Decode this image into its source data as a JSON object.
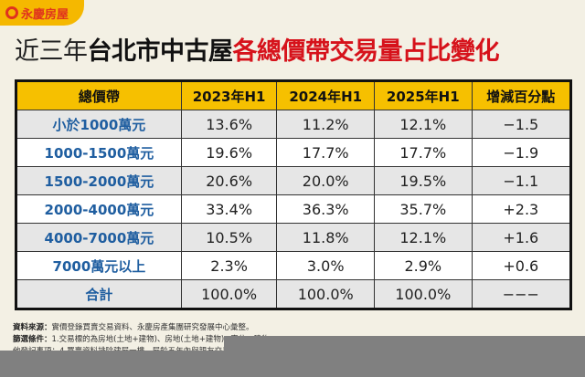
{
  "logo": {
    "text": "永慶房屋"
  },
  "title": {
    "part1": "近三年",
    "part2": "台北市中古屋",
    "part3": "各總價帶交易量占比變化"
  },
  "table": {
    "headers": [
      "總價帶",
      "2023年H1",
      "2024年H1",
      "2025年H1",
      "增減百分點"
    ],
    "rows": [
      [
        "小於1000萬元",
        "13.6%",
        "11.2%",
        "12.1%",
        "−1.5"
      ],
      [
        "1000-1500萬元",
        "19.6%",
        "17.7%",
        "17.7%",
        "−1.9"
      ],
      [
        "1500-2000萬元",
        "20.6%",
        "20.0%",
        "19.5%",
        "−1.1"
      ],
      [
        "2000-4000萬元",
        "33.4%",
        "36.3%",
        "35.7%",
        "+2.3"
      ],
      [
        "4000-7000萬元",
        "10.5%",
        "11.8%",
        "12.1%",
        "+1.6"
      ],
      [
        "7000萬元以上",
        "2.3%",
        "3.0%",
        "2.9%",
        "+0.6"
      ],
      [
        "合計",
        "100.0%",
        "100.0%",
        "100.0%",
        "−−−"
      ]
    ]
  },
  "footer": {
    "source_label": "資料來源：",
    "source_text": "實價登錄買賣交易資料、永慶房產集團研究發展中心彙整。",
    "filter_label": "篩選條件：",
    "filter_text": "1.交易標的為房地(土地+建物)、房地(土地+建物)+車位、建物",
    "line3": "他登記事項；4.買賣資料排除建屋一樓、屋齡五年內與親友交易之成"
  },
  "colors": {
    "header": "#f6c000",
    "label": "#1f5ea0",
    "accent": "#d6121b"
  }
}
